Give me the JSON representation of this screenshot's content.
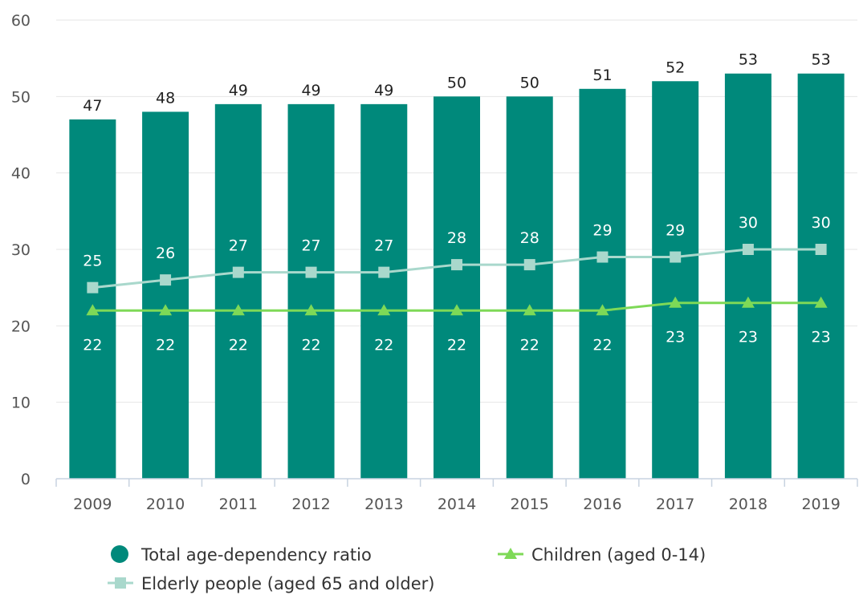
{
  "chart_data": {
    "type": "bar",
    "categories": [
      "2009",
      "2010",
      "2011",
      "2012",
      "2013",
      "2014",
      "2015",
      "2016",
      "2017",
      "2018",
      "2019"
    ],
    "ylim": [
      0,
      60
    ],
    "yticks": [
      0,
      10,
      20,
      30,
      40,
      50,
      60
    ],
    "grid": true,
    "legend_position": "bottom",
    "series": [
      {
        "name": "Total age-dependency ratio",
        "kind": "bar",
        "marker": "circle",
        "color": "#00897b",
        "values": [
          47,
          48,
          49,
          49,
          49,
          50,
          50,
          51,
          52,
          53,
          53
        ]
      },
      {
        "name": "Children (aged 0-14)",
        "kind": "line",
        "marker": "triangle",
        "color": "#7ed957",
        "values": [
          22,
          22,
          22,
          22,
          22,
          22,
          22,
          22,
          23,
          23,
          23
        ]
      },
      {
        "name": "Elderly people (aged 65 and older)",
        "kind": "line",
        "marker": "square",
        "color": "#a9d8cc",
        "values": [
          25,
          26,
          27,
          27,
          27,
          28,
          28,
          29,
          29,
          30,
          30
        ]
      }
    ]
  }
}
